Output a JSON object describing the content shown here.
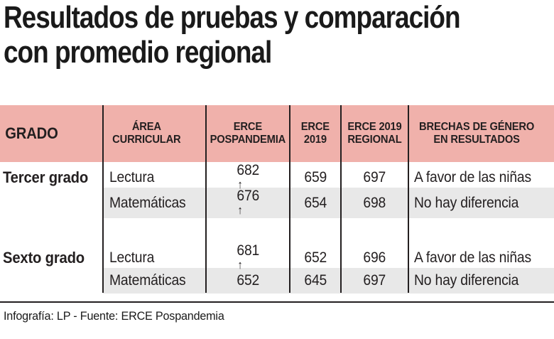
{
  "title": "Resultados de pruebas y comparación\ncon promedio regional",
  "table": {
    "headers": [
      "GRADO",
      "ÁREA\nCURRICULAR",
      "ERCE\nPOSPANDEMIA",
      "ERCE\n2019",
      "ERCE 2019\nREGIONAL",
      "BRECHAS DE GÉNERO\nEN RESULTADOS"
    ],
    "rows": [
      {
        "grado": "Tercer grado",
        "area": "Lectura",
        "erce_pospandemia": "682",
        "trend_up": true,
        "erce_2019": "659",
        "erce_2019_regional": "697",
        "brecha": "A favor de las niñas",
        "shaded": false
      },
      {
        "grado": "",
        "area": "Matemáticas",
        "erce_pospandemia": "676",
        "trend_up": true,
        "erce_2019": "654",
        "erce_2019_regional": "698",
        "brecha": "No hay diferencia",
        "shaded": true
      },
      {
        "spacer": true
      },
      {
        "grado": "Sexto grado",
        "area": "Lectura",
        "erce_pospandemia": "681",
        "trend_up": true,
        "erce_2019": "652",
        "erce_2019_regional": "696",
        "brecha": "A favor de las niñas",
        "shaded": false
      },
      {
        "grado": "",
        "area": "Matemáticas",
        "erce_pospandemia": "652",
        "trend_up": false,
        "erce_2019": "645",
        "erce_2019_regional": "697",
        "brecha": "No hay diferencia",
        "shaded": true
      }
    ]
  },
  "footer": {
    "credit": "Infografía: LP - Fuente: ERCE Pospandemia"
  },
  "icons": {
    "trend_up_arrow": "↑"
  },
  "colors": {
    "header_bg": "#f0b1ab",
    "shaded_row_bg": "#e8e8e8",
    "line": "#231f20",
    "text": "#231f20"
  },
  "chart_data": {
    "type": "table",
    "title": "Resultados de pruebas y comparación con promedio regional",
    "columns": [
      "GRADO",
      "ÁREA CURRICULAR",
      "ERCE POSPANDEMIA",
      "ERCE 2019",
      "ERCE 2019 REGIONAL",
      "BRECHAS DE GÉNERO EN RESULTADOS"
    ],
    "rows": [
      [
        "Tercer grado",
        "Lectura",
        "682↑",
        "659",
        "697",
        "A favor de las niñas"
      ],
      [
        "Tercer grado",
        "Matemáticas",
        "676↑",
        "654",
        "698",
        "No hay diferencia"
      ],
      [
        "Sexto grado",
        "Lectura",
        "681↑",
        "652",
        "696",
        "A favor de las niñas"
      ],
      [
        "Sexto grado",
        "Matemáticas",
        "652",
        "645",
        "697",
        "No hay diferencia"
      ]
    ],
    "source": "Infografía: LP - Fuente: ERCE Pospandemia"
  }
}
